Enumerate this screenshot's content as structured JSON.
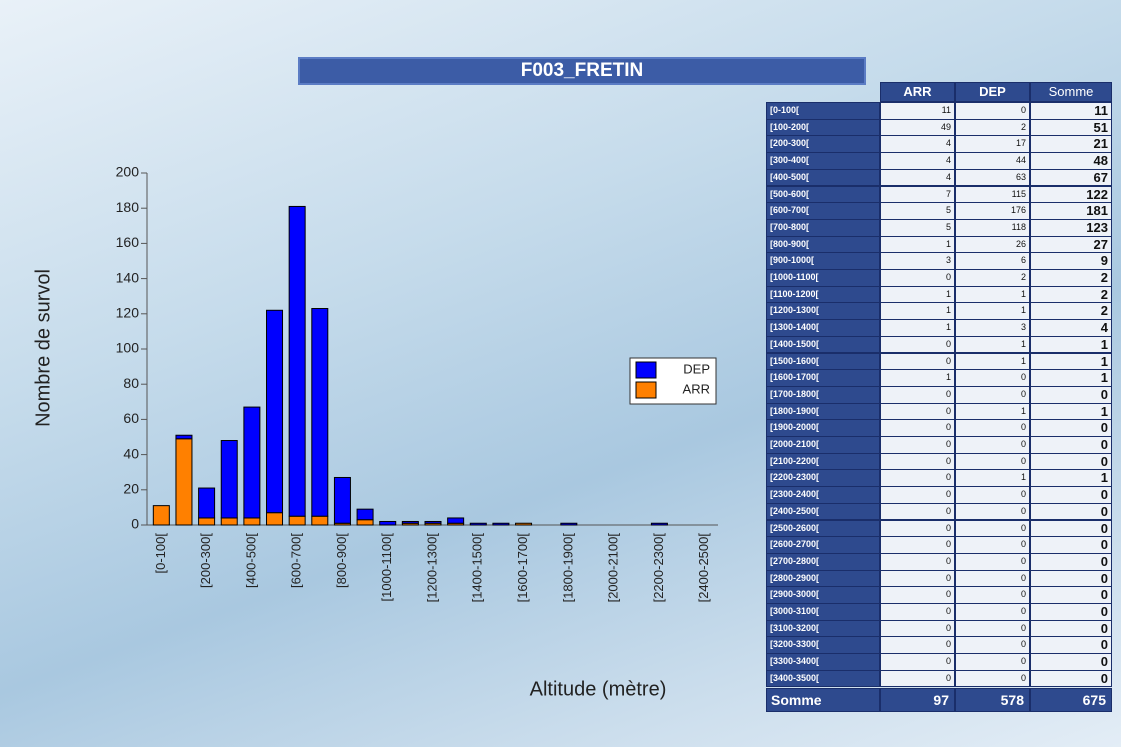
{
  "chart_data": {
    "type": "stacked-bar",
    "title": "F003_FRETIN",
    "y_label": "Nombre de survol",
    "x_label": "Altitude (mètre)",
    "categories": [
      "[0-100[",
      null,
      "[200-300[",
      null,
      "[400-500[",
      null,
      "[600-700[",
      null,
      "[800-900[",
      null,
      "[1000-1100[",
      null,
      "[1200-1300[",
      null,
      "[1400-1500[",
      null,
      "[1600-1700[",
      null,
      "[1800-1900[",
      null,
      "[2000-2100[",
      null,
      "[2200-2300[",
      null,
      "[2400-2500["
    ],
    "series": [
      {
        "name": "ARR",
        "color": "#ff8000",
        "values": [
          11,
          49,
          4,
          4,
          4,
          7,
          5,
          5,
          1,
          3,
          0,
          1,
          1,
          1,
          0,
          0,
          1,
          0,
          0,
          0,
          0,
          0,
          0,
          0,
          0
        ]
      },
      {
        "name": "DEP",
        "color": "#0000ff",
        "values": [
          0,
          2,
          17,
          44,
          63,
          115,
          176,
          118,
          26,
          6,
          2,
          1,
          1,
          3,
          1,
          1,
          0,
          0,
          1,
          0,
          0,
          0,
          1,
          0,
          0
        ]
      }
    ],
    "ylim": [
      0,
      200
    ],
    "yticks": [
      0,
      20,
      40,
      60,
      80,
      100,
      120,
      140,
      160,
      180,
      200
    ],
    "grid": false,
    "legend": "right"
  },
  "table": {
    "columns": [
      "ARR",
      "DEP",
      "Somme"
    ],
    "rows": [
      [
        "[0-100[",
        11,
        0,
        11
      ],
      [
        "[100-200[",
        49,
        2,
        51
      ],
      [
        "[200-300[",
        4,
        17,
        21
      ],
      [
        "[300-400[",
        4,
        44,
        48
      ],
      [
        "[400-500[",
        4,
        63,
        67
      ],
      [
        "[500-600[",
        7,
        115,
        122
      ],
      [
        "[600-700[",
        5,
        176,
        181
      ],
      [
        "[700-800[",
        5,
        118,
        123
      ],
      [
        "[800-900[",
        1,
        26,
        27
      ],
      [
        "[900-1000[",
        3,
        6,
        9
      ],
      [
        "[1000-1100[",
        0,
        2,
        2
      ],
      [
        "[1100-1200[",
        1,
        1,
        2
      ],
      [
        "[1200-1300[",
        1,
        1,
        2
      ],
      [
        "[1300-1400[",
        1,
        3,
        4
      ],
      [
        "[1400-1500[",
        0,
        1,
        1
      ],
      [
        "[1500-1600[",
        0,
        1,
        1
      ],
      [
        "[1600-1700[",
        1,
        0,
        1
      ],
      [
        "[1700-1800[",
        0,
        0,
        0
      ],
      [
        "[1800-1900[",
        0,
        1,
        1
      ],
      [
        "[1900-2000[",
        0,
        0,
        0
      ],
      [
        "[2000-2100[",
        0,
        0,
        0
      ],
      [
        "[2100-2200[",
        0,
        0,
        0
      ],
      [
        "[2200-2300[",
        0,
        1,
        1
      ],
      [
        "[2300-2400[",
        0,
        0,
        0
      ],
      [
        "[2400-2500[",
        0,
        0,
        0
      ],
      [
        "[2500-2600[",
        0,
        0,
        0
      ],
      [
        "[2600-2700[",
        0,
        0,
        0
      ],
      [
        "[2700-2800[",
        0,
        0,
        0
      ],
      [
        "[2800-2900[",
        0,
        0,
        0
      ],
      [
        "[2900-3000[",
        0,
        0,
        0
      ],
      [
        "[3000-3100[",
        0,
        0,
        0
      ],
      [
        "[3100-3200[",
        0,
        0,
        0
      ],
      [
        "[3200-3300[",
        0,
        0,
        0
      ],
      [
        "[3300-3400[",
        0,
        0,
        0
      ],
      [
        "[3400-3500[",
        0,
        0,
        0
      ]
    ],
    "footer": [
      "Somme",
      97,
      578,
      675
    ]
  }
}
